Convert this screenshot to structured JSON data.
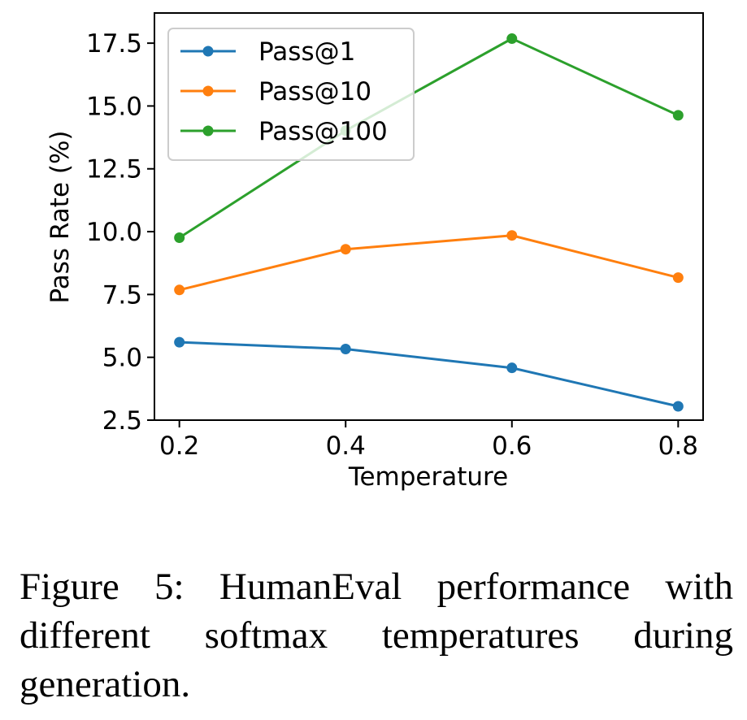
{
  "chart_data": {
    "type": "line",
    "title": "",
    "xlabel": "Temperature",
    "ylabel": "Pass Rate (%)",
    "x": [
      0.2,
      0.4,
      0.6,
      0.8
    ],
    "xticks": [
      "0.2",
      "0.4",
      "0.6",
      "0.8"
    ],
    "xlim": [
      0.17,
      0.83
    ],
    "yticks": [
      "2.5",
      "5.0",
      "7.5",
      "10.0",
      "12.5",
      "15.0",
      "17.5"
    ],
    "ylim": [
      2.5,
      18.7
    ],
    "grid": false,
    "legend_position": "top-left",
    "series": [
      {
        "name": "Pass@1",
        "color": "#1f77b4",
        "values": [
          5.6,
          5.33,
          4.58,
          3.05
        ]
      },
      {
        "name": "Pass@10",
        "color": "#ff7f0e",
        "values": [
          7.68,
          9.3,
          9.85,
          8.17
        ]
      },
      {
        "name": "Pass@100",
        "color": "#2ca02c",
        "values": [
          9.76,
          14.02,
          17.68,
          14.63
        ]
      }
    ]
  },
  "caption": "Figure 5: HumanEval performance with different softmax temperatures during generation."
}
